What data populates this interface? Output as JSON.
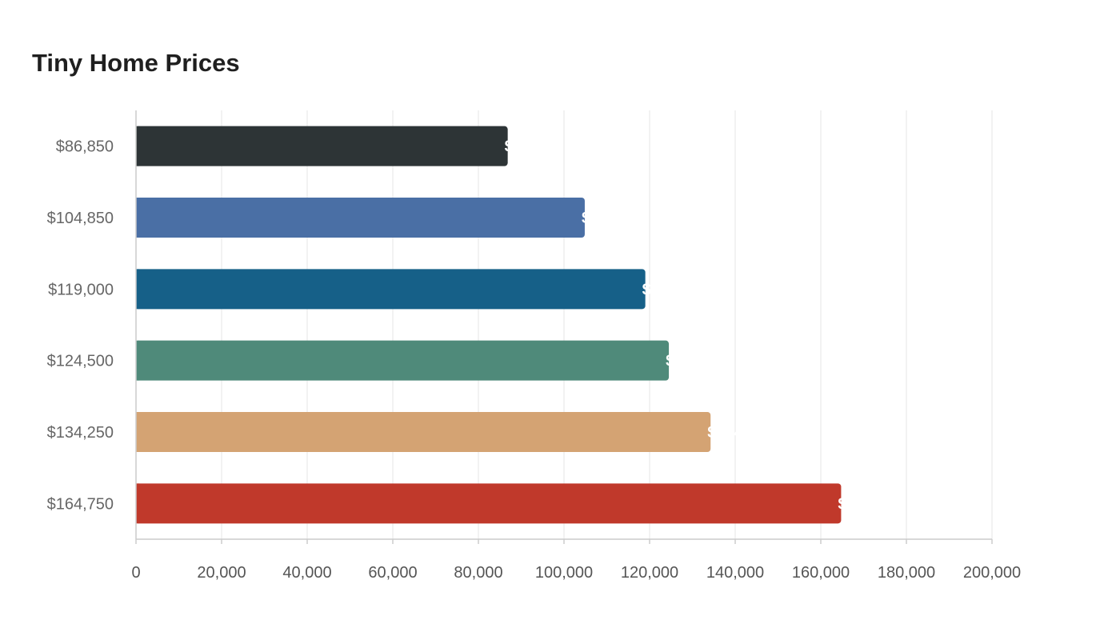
{
  "chart_data": {
    "type": "bar",
    "orientation": "horizontal",
    "title": "Tiny Home Prices",
    "xlabel": "",
    "ylabel": "",
    "categories": [
      "$86,850",
      "$104,850",
      "$119,000",
      "$124,500",
      "$134,250",
      "$164,750"
    ],
    "values": [
      86850,
      104850,
      119000,
      124500,
      134250,
      164750
    ],
    "data_labels": [
      "$86,850",
      "$104,850",
      "$119,000",
      "$124,500",
      "$134,250",
      "$164,750"
    ],
    "colors": [
      "#2d3436",
      "#4a6fa5",
      "#166088",
      "#4f8a7a",
      "#d4a373",
      "#c0392b"
    ],
    "xlim": [
      0,
      200000
    ],
    "xticks": [
      0,
      20000,
      40000,
      60000,
      80000,
      100000,
      120000,
      140000,
      160000,
      180000,
      200000
    ],
    "xtick_labels": [
      "0",
      "20,000",
      "40,000",
      "60,000",
      "80,000",
      "100,000",
      "120,000",
      "140,000",
      "160,000",
      "180,000",
      "200,000"
    ],
    "grid": true,
    "legend": "none"
  }
}
